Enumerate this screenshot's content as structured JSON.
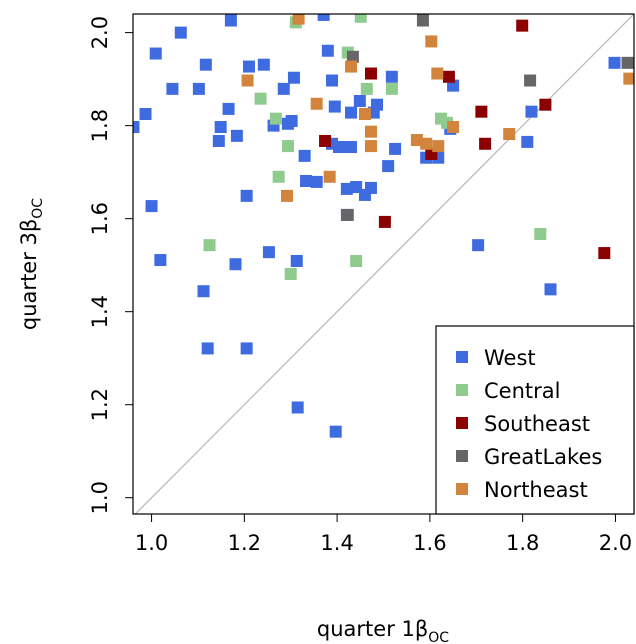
{
  "chart_data": {
    "type": "scatter",
    "x_label": "quarter 1β",
    "x_label_sub": "OC",
    "y_label": "quarter 3β",
    "y_label_sub": "OC",
    "xlim": [
      0.96,
      2.04
    ],
    "ylim": [
      0.965,
      2.04
    ],
    "xticks": [
      {
        "value": 1,
        "label": "1.0"
      },
      1.2,
      1.4,
      1.6,
      1.8,
      {
        "value": 2,
        "label": "2.0"
      }
    ],
    "yticks": [
      {
        "value": 1,
        "label": "1.0"
      },
      1.2,
      1.4,
      1.6,
      1.8,
      {
        "value": 2,
        "label": "2.0"
      }
    ],
    "diagonal": true,
    "legend": "bottom-right",
    "series": [
      {
        "name": "West",
        "color": "#3f6be0",
        "x": [
          0.961,
          0.987,
          1.0,
          1.009,
          1.019,
          1.045,
          1.063,
          1.102,
          1.117,
          1.112,
          1.145,
          1.149,
          1.171,
          1.166,
          1.184,
          1.205,
          1.21,
          1.181,
          1.121,
          1.205,
          1.242,
          1.253,
          1.263,
          1.285,
          1.294,
          1.302,
          1.307,
          1.313,
          1.33,
          1.333,
          1.356,
          1.38,
          1.389,
          1.395,
          1.371,
          1.389,
          1.404,
          1.417,
          1.43,
          1.421,
          1.43,
          1.421,
          1.449,
          1.46,
          1.473,
          1.479,
          1.486,
          1.518,
          1.51,
          1.525,
          1.592,
          1.618,
          1.644,
          1.65,
          1.704,
          1.81,
          1.819,
          1.86,
          1.998,
          1.315,
          1.397,
          1.441
        ],
        "values": [
          1.797,
          1.825,
          1.627,
          1.955,
          1.511,
          1.879,
          2.0,
          1.879,
          1.931,
          1.444,
          1.767,
          1.797,
          2.026,
          1.836,
          1.778,
          1.649,
          1.927,
          1.502,
          1.321,
          1.321,
          1.931,
          1.528,
          1.8,
          1.879,
          1.804,
          1.81,
          1.903,
          1.509,
          1.735,
          1.681,
          1.679,
          1.961,
          1.897,
          1.841,
          2.038,
          1.761,
          1.754,
          1.754,
          1.754,
          1.664,
          1.828,
          1.608,
          1.853,
          1.651,
          1.666,
          1.828,
          1.845,
          1.905,
          1.713,
          1.75,
          1.731,
          1.731,
          1.793,
          1.886,
          1.543,
          1.765,
          1.83,
          1.448,
          1.935,
          1.194,
          1.142,
          1.668
        ]
      },
      {
        "name": "Central",
        "color": "#8fca8f",
        "x": [
          1.311,
          1.451,
          1.423,
          1.235,
          1.268,
          1.294,
          1.274,
          1.125,
          1.3,
          1.441,
          1.464,
          1.518,
          1.624,
          1.637,
          1.838
        ],
        "values": [
          2.022,
          2.034,
          1.957,
          1.858,
          1.815,
          1.756,
          1.69,
          1.543,
          1.481,
          1.509,
          1.879,
          1.879,
          1.815,
          1.806,
          1.567
        ]
      },
      {
        "name": "Southeast",
        "color": "#8b0000",
        "x": [
          1.473,
          1.374,
          1.503,
          1.603,
          1.641,
          1.711,
          1.719,
          1.799,
          1.849,
          1.976
        ],
        "values": [
          1.912,
          1.767,
          1.593,
          1.739,
          1.905,
          1.83,
          1.761,
          2.015,
          1.845,
          1.526
        ]
      },
      {
        "name": "GreatLakes",
        "color": "#666666",
        "x": [
          1.585,
          1.434,
          1.423,
          1.816,
          2.026
        ],
        "values": [
          2.026,
          1.948,
          1.608,
          1.897,
          1.935
        ]
      },
      {
        "name": "Northeast",
        "color": "#d2843c",
        "x": [
          1.317,
          1.207,
          1.292,
          1.356,
          1.384,
          1.43,
          1.46,
          1.473,
          1.473,
          1.603,
          1.616,
          1.572,
          1.592,
          1.618,
          1.65,
          1.771,
          2.03
        ],
        "values": [
          2.03,
          1.897,
          1.649,
          1.847,
          1.69,
          1.927,
          1.825,
          1.787,
          1.756,
          1.981,
          1.912,
          1.769,
          1.761,
          1.756,
          1.797,
          1.782,
          1.901
        ]
      }
    ]
  }
}
